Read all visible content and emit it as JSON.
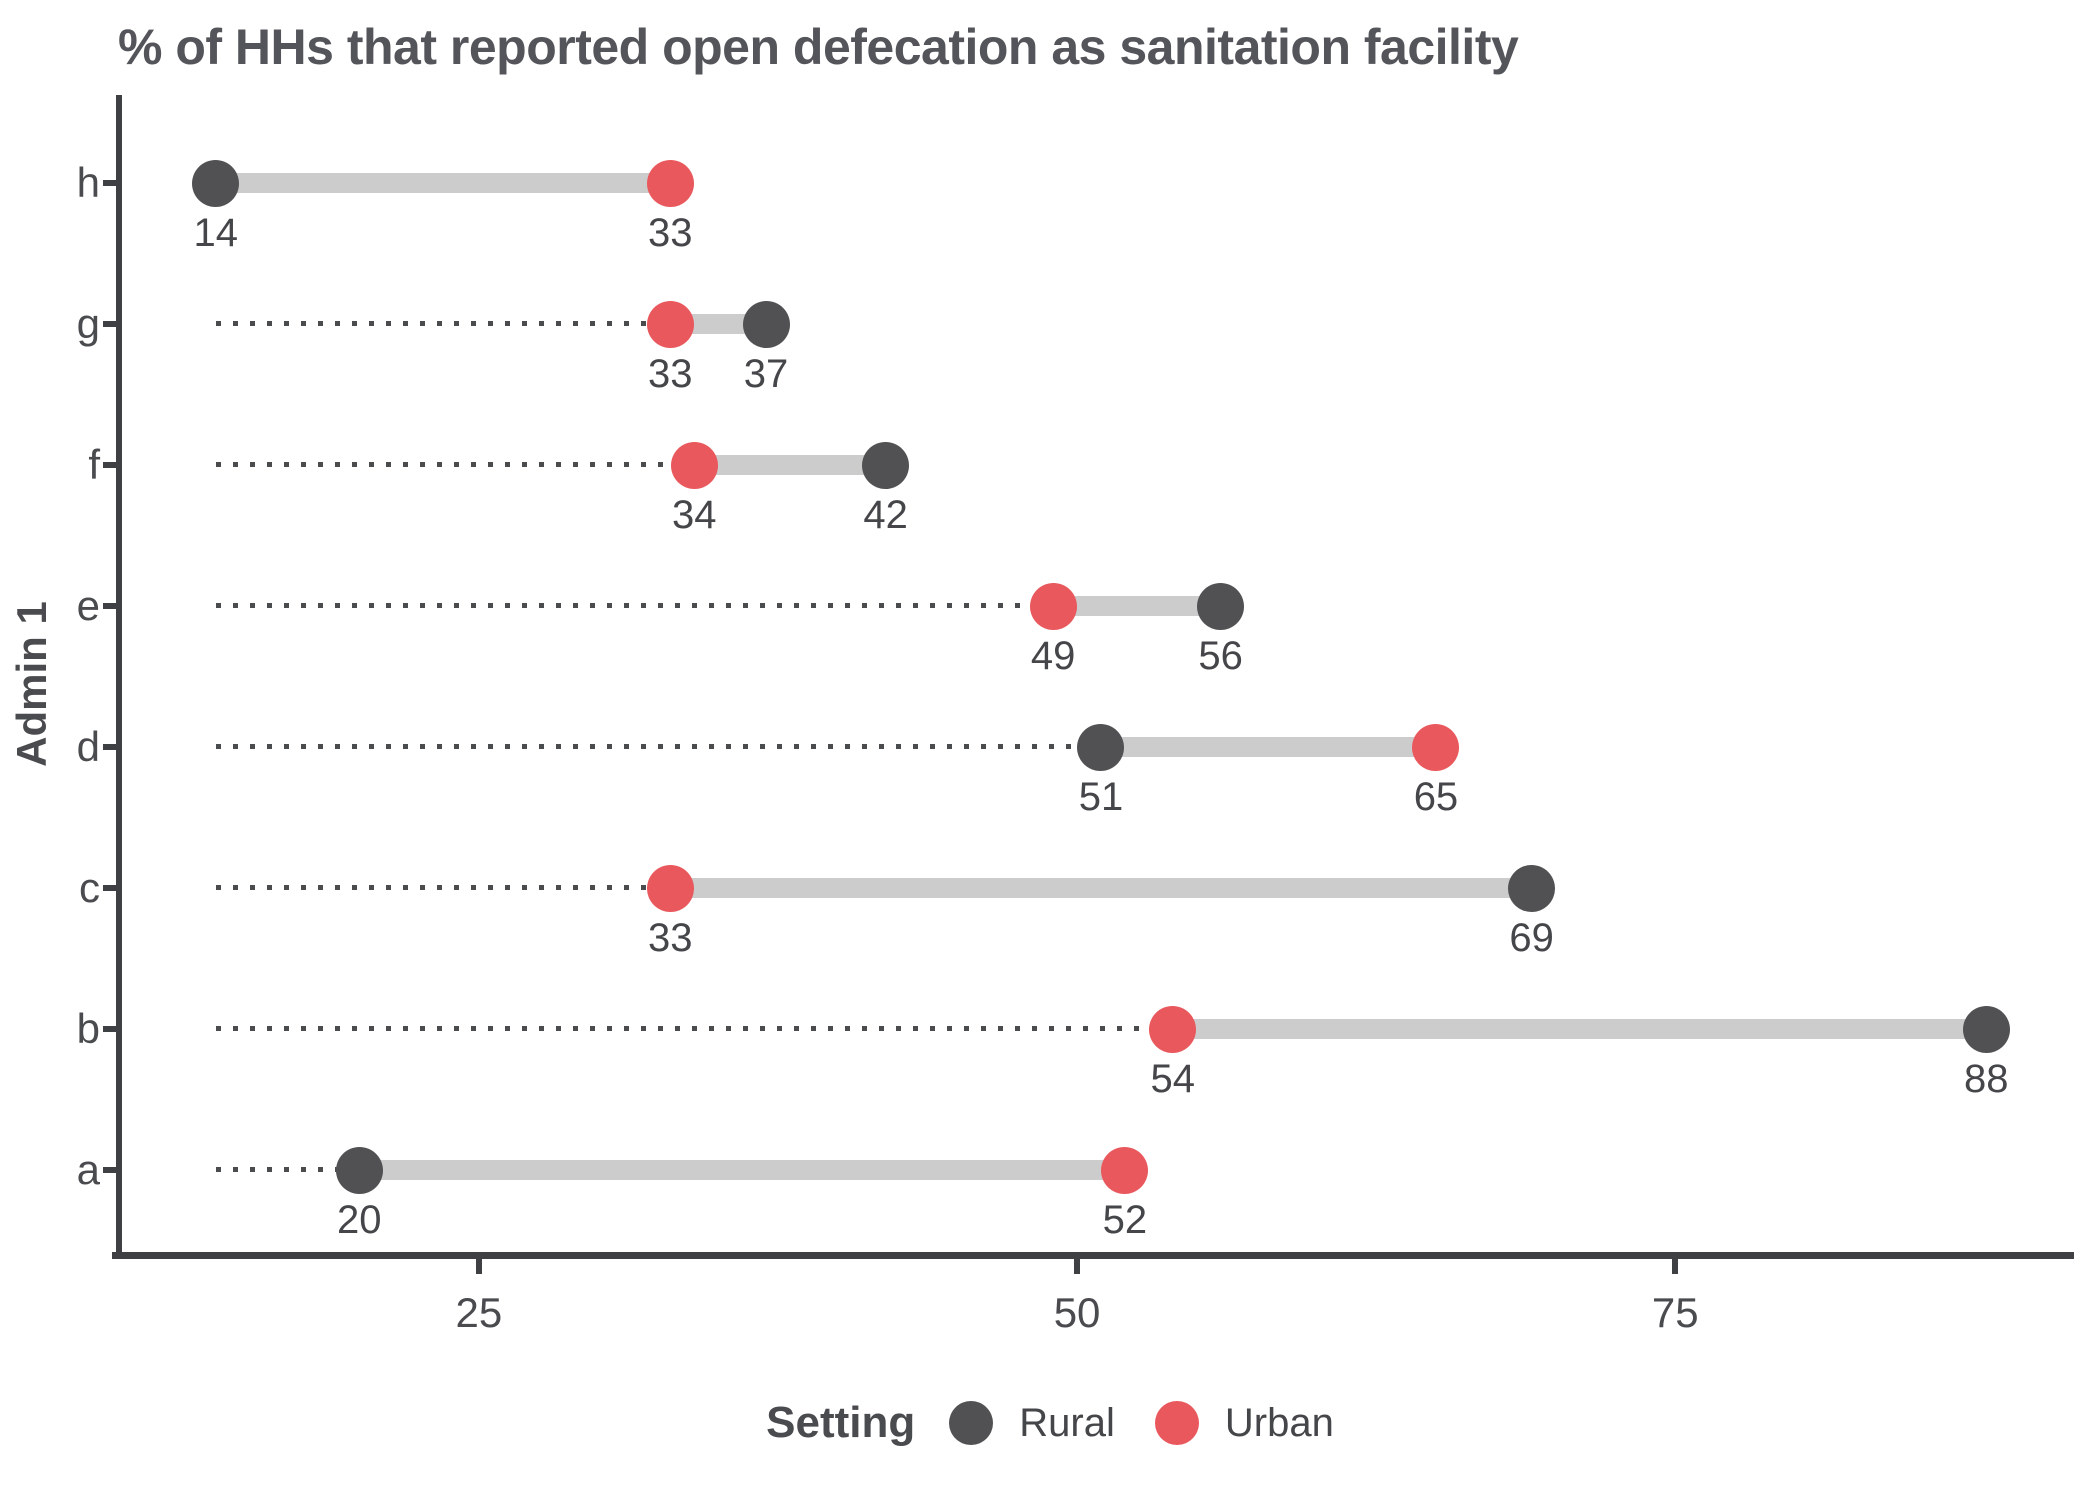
{
  "title": "% of HHs that reported open defecation as sanitation facility",
  "axes": {
    "y_title": "Admin 1",
    "x_tick_labels": [
      "25",
      "50",
      "75"
    ]
  },
  "legend": {
    "title": "Setting",
    "items": [
      {
        "label": "Rural",
        "series": "rural"
      },
      {
        "label": "Urban",
        "series": "urban"
      }
    ]
  },
  "colors": {
    "rural": "#515154",
    "urban": "#e9585c",
    "band": "#cccccc",
    "dotted_line": "#4b4c4e",
    "axis": "#3f4043",
    "text": "#454649"
  },
  "chart_data": {
    "type": "scatter",
    "variant": "dumbbell",
    "title": "% of HHs that reported open defecation as sanitation facility",
    "xlabel": "",
    "ylabel": "Admin 1",
    "legend_title": "Setting",
    "series_names": [
      "Rural",
      "Urban"
    ],
    "categories": [
      "h",
      "g",
      "f",
      "e",
      "d",
      "c",
      "b",
      "a"
    ],
    "rows": [
      {
        "category": "h",
        "rural": 14,
        "urban": 33
      },
      {
        "category": "g",
        "rural": 37,
        "urban": 33
      },
      {
        "category": "f",
        "rural": 42,
        "urban": 34
      },
      {
        "category": "e",
        "rural": 56,
        "urban": 49
      },
      {
        "category": "d",
        "rural": 51,
        "urban": 65
      },
      {
        "category": "c",
        "rural": 69,
        "urban": 33
      },
      {
        "category": "b",
        "rural": 88,
        "urban": 54
      },
      {
        "category": "a",
        "rural": 20,
        "urban": 52
      }
    ],
    "x_ticks": [
      25,
      50,
      75
    ],
    "x_domain": [
      10,
      91.5
    ],
    "dotted_line_origin": 14,
    "grid": false,
    "legend_position": "bottom"
  }
}
